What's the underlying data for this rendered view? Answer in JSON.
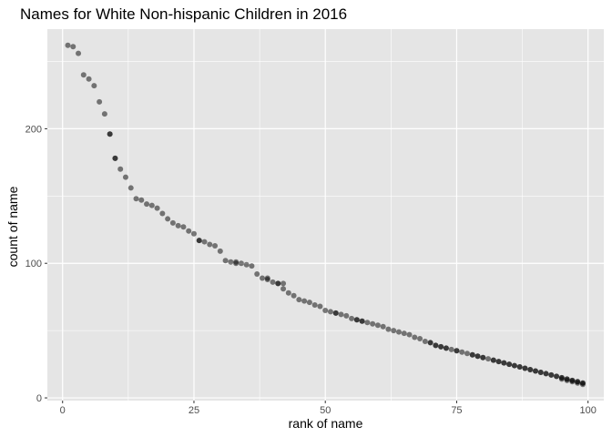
{
  "chart_data": {
    "type": "scatter",
    "title": "Names for White Non-hispanic Children in 2016",
    "xlabel": "rank of name",
    "ylabel": "count of name",
    "xlim": [
      -2.9,
      103
    ],
    "ylim": [
      -2,
      274
    ],
    "x_ticks": [
      0,
      25,
      50,
      75,
      100
    ],
    "x_tick_labels": [
      "0",
      "25",
      "50",
      "75",
      "100"
    ],
    "y_ticks": [
      0,
      100,
      200
    ],
    "y_tick_labels": [
      "0",
      "100",
      "200"
    ],
    "point_color": "#000000",
    "point_alpha": 0.5,
    "panel_background": "#e5e5e5",
    "grid_color": "#ffffff",
    "x": [
      1,
      2,
      3,
      4,
      5,
      6,
      7,
      8,
      9,
      10,
      11,
      12,
      13,
      14,
      15,
      16,
      17,
      18,
      19,
      20,
      21,
      22,
      23,
      24,
      25,
      26,
      27,
      28,
      29,
      30,
      31,
      32,
      33,
      34,
      35,
      36,
      37,
      38,
      39,
      40,
      41,
      42,
      43,
      44,
      45,
      46,
      47,
      48,
      49,
      50,
      51,
      52,
      53,
      54,
      55,
      56,
      57,
      58,
      59,
      60,
      61,
      62,
      63,
      64,
      65,
      66,
      67,
      68,
      69,
      70,
      71,
      72,
      73,
      74,
      75,
      76,
      77,
      78,
      79,
      80,
      81,
      82,
      83,
      84,
      85,
      86,
      87,
      88,
      89,
      90,
      91,
      92,
      93,
      94,
      95,
      96,
      97,
      98,
      99
    ],
    "y": [
      262,
      261,
      256,
      240,
      237,
      232,
      220,
      211,
      196,
      178,
      170,
      164,
      156,
      148,
      147,
      144,
      143,
      141,
      137,
      133,
      130,
      128,
      127,
      124,
      122,
      117,
      116,
      114,
      113,
      109,
      102,
      101,
      101,
      100,
      99,
      98,
      92,
      89,
      88,
      86,
      85,
      81,
      78,
      76,
      73,
      72,
      71,
      69,
      68,
      65,
      64,
      63,
      62,
      61,
      59,
      58,
      57,
      56,
      55,
      54,
      53,
      51,
      50,
      49,
      48,
      47,
      45,
      44,
      42,
      41,
      39,
      38,
      37,
      36,
      35,
      34,
      33,
      32,
      31,
      30,
      29,
      28,
      27,
      26,
      25,
      24,
      23,
      22,
      21,
      20,
      19,
      18,
      17,
      16,
      15,
      14,
      13,
      12,
      11
    ],
    "x_dup": [
      9,
      10,
      26,
      33,
      39,
      41,
      42,
      52,
      56,
      57,
      70,
      71,
      72,
      73,
      75,
      78,
      79,
      80,
      82,
      83,
      84,
      85,
      86,
      87,
      88,
      89,
      90,
      91,
      92,
      93,
      94,
      95,
      96,
      97,
      98,
      99,
      99,
      98,
      97,
      96,
      95
    ],
    "y_dup": [
      196,
      178,
      117,
      100,
      89,
      85,
      85,
      63,
      58,
      57,
      41,
      39,
      38,
      37,
      35,
      32,
      31,
      30,
      28,
      27,
      26,
      25,
      24,
      23,
      22,
      21,
      20,
      19,
      18,
      17,
      16,
      15,
      14,
      13,
      12,
      11,
      10,
      11,
      12,
      13,
      14
    ]
  }
}
